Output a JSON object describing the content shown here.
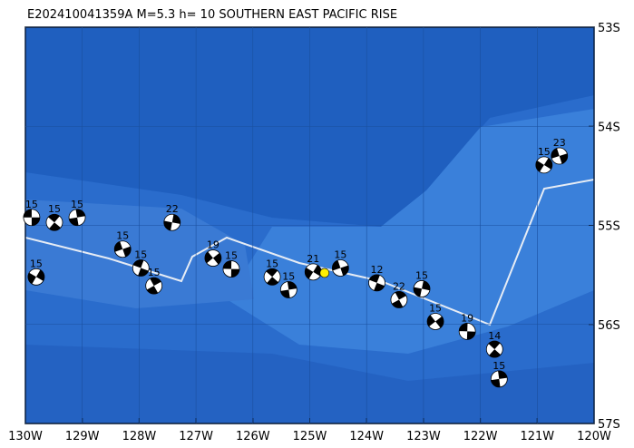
{
  "map": {
    "title": "E202410041359A M=5.3 h= 10 SOUTHERN EAST PACIFIC RISE",
    "xlim": [
      -130,
      -120
    ],
    "ylim": [
      -57,
      -53
    ],
    "xticks": [
      {
        "value": -130,
        "label": "130W"
      },
      {
        "value": -129,
        "label": "129W"
      },
      {
        "value": -128,
        "label": "128W"
      },
      {
        "value": -127,
        "label": "127W"
      },
      {
        "value": -126,
        "label": "126W"
      },
      {
        "value": -125,
        "label": "125W"
      },
      {
        "value": -124,
        "label": "124W"
      },
      {
        "value": -123,
        "label": "123W"
      },
      {
        "value": -122,
        "label": "122W"
      },
      {
        "value": -121,
        "label": "121W"
      },
      {
        "value": -120,
        "label": "120W"
      }
    ],
    "yticks": [
      {
        "value": -53,
        "label": "53S"
      },
      {
        "value": -54,
        "label": "54S"
      },
      {
        "value": -55,
        "label": "55S"
      },
      {
        "value": -56,
        "label": "56S"
      },
      {
        "value": -57,
        "label": "57S"
      }
    ],
    "epicenter": {
      "lon": -124.74,
      "lat": -55.48
    },
    "events": [
      {
        "lon": -129.89,
        "lat": -54.92,
        "depth": 15
      },
      {
        "lon": -129.49,
        "lat": -54.97,
        "depth": 15
      },
      {
        "lon": -129.09,
        "lat": -54.92,
        "depth": 15
      },
      {
        "lon": -129.81,
        "lat": -55.52,
        "depth": 15
      },
      {
        "lon": -128.29,
        "lat": -55.24,
        "depth": 15
      },
      {
        "lon": -127.97,
        "lat": -55.43,
        "depth": 15
      },
      {
        "lon": -127.74,
        "lat": -55.61,
        "depth": 15
      },
      {
        "lon": -127.42,
        "lat": -54.97,
        "depth": 22
      },
      {
        "lon": -126.7,
        "lat": -55.33,
        "depth": 19
      },
      {
        "lon": -126.38,
        "lat": -55.44,
        "depth": 15
      },
      {
        "lon": -125.66,
        "lat": -55.52,
        "depth": 15
      },
      {
        "lon": -125.37,
        "lat": -55.65,
        "depth": 15
      },
      {
        "lon": -124.94,
        "lat": -55.47,
        "depth": 21
      },
      {
        "lon": -124.46,
        "lat": -55.43,
        "depth": 15
      },
      {
        "lon": -123.82,
        "lat": -55.58,
        "depth": 12
      },
      {
        "lon": -123.43,
        "lat": -55.75,
        "depth": 22
      },
      {
        "lon": -123.03,
        "lat": -55.64,
        "depth": 15
      },
      {
        "lon": -122.79,
        "lat": -55.97,
        "depth": 15
      },
      {
        "lon": -122.23,
        "lat": -56.07,
        "depth": 19
      },
      {
        "lon": -121.75,
        "lat": -56.25,
        "depth": 14
      },
      {
        "lon": -121.67,
        "lat": -56.55,
        "depth": 15
      },
      {
        "lon": -120.88,
        "lat": -54.39,
        "depth": 15
      },
      {
        "lon": -120.61,
        "lat": -54.3,
        "depth": 23
      }
    ]
  }
}
